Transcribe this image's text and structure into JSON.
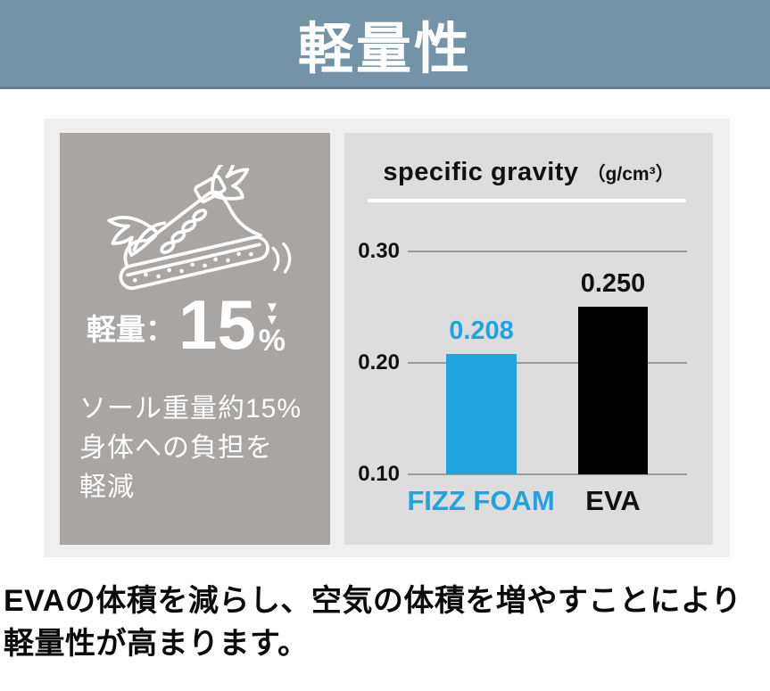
{
  "colors": {
    "header_bg": "#7493a6",
    "header_border": "#62808f",
    "page_bg": "#ffffff",
    "container_bg": "#efefef",
    "left_panel_bg": "#a8a5a2",
    "right_panel_bg": "#dcdddc",
    "accent_blue": "#21a3e0",
    "grid_line": "#9b9b9b",
    "text_dark": "#111111",
    "text_white": "#ffffff"
  },
  "header": {
    "title": "軽量性"
  },
  "left_panel": {
    "icon": "winged-sneaker-icon",
    "headline_label": "軽量：",
    "headline_value": "15",
    "headline_unit": "%",
    "headline_arrows": [
      "▼",
      "▼"
    ],
    "description_lines": [
      "ソール重量約15%",
      "身体への負担を",
      "軽減"
    ]
  },
  "chart_data": {
    "type": "bar",
    "title": "specific gravity",
    "unit_label": "（g/cm³）",
    "categories": [
      "FIZZ FOAM",
      "EVA"
    ],
    "values": [
      0.208,
      0.25
    ],
    "value_labels": [
      "0.208",
      "0.250"
    ],
    "bar_colors": [
      "#21a3e0",
      "#000000"
    ],
    "label_colors": [
      "#21a3e0",
      "#111111"
    ],
    "ylim": [
      0.1,
      0.3
    ],
    "yticks": [
      "0.30",
      "0.20",
      "0.10"
    ],
    "grid": true,
    "legend_position": "none",
    "note": "bars rise from 0.10 baseline"
  },
  "footer": {
    "lines": [
      "EVAの体積を減らし、空気の体積を増やすことにより",
      "軽量性が高まります。"
    ]
  }
}
